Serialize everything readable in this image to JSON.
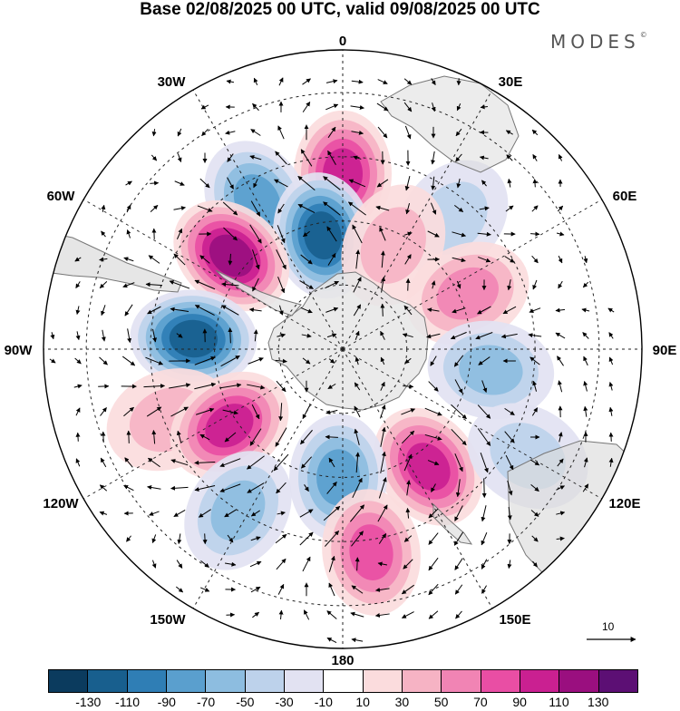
{
  "title": "Base 02/08/2025 00 UTC, valid 09/08/2025 00 UTC",
  "logo": "MODES",
  "logo_mark": "©",
  "longitude_labels": {
    "lon_0": "0",
    "lon_30e": "30E",
    "lon_60e": "60E",
    "lon_90e": "90E",
    "lon_120e": "120E",
    "lon_150e": "150E",
    "lon_180": "180",
    "lon_150w": "150W",
    "lon_120w": "120W",
    "lon_90w": "90W",
    "lon_60w": "60W",
    "lon_30w": "30W"
  },
  "reference_vector": "10",
  "colorbar": {
    "colors": [
      "#0b3b5e",
      "#185f8e",
      "#2f7eb5",
      "#5a9fce",
      "#8dbde0",
      "#bdd2eb",
      "#e2e2f2",
      "#ffffff",
      "#fbdcdd",
      "#f6b3c4",
      "#f184b4",
      "#e94ea4",
      "#ca2091",
      "#9a0f7f",
      "#5c0f74"
    ],
    "labels": [
      "-130",
      "-110",
      "-90",
      "-70",
      "-50",
      "-30",
      "-10",
      "10",
      "30",
      "50",
      "70",
      "90",
      "110",
      "130"
    ]
  },
  "anomaly_centers": [
    {
      "lon": 0,
      "lat": -49,
      "value": 100
    },
    {
      "lon": 40,
      "lat": -50,
      "value": -40
    },
    {
      "lon": 10,
      "lat": -76,
      "value": 5
    },
    {
      "lon": -30,
      "lat": -50,
      "value": -70
    },
    {
      "lon": -10,
      "lat": -63,
      "value": -120
    },
    {
      "lon": 26,
      "lat": -63,
      "value": 40
    },
    {
      "lon": -50,
      "lat": -56,
      "value": 110
    },
    {
      "lon": 66,
      "lat": -58,
      "value": 60
    },
    {
      "lon": -86,
      "lat": -55,
      "value": -110
    },
    {
      "lon": 98,
      "lat": -55,
      "value": -60
    },
    {
      "lon": -112,
      "lat": -46,
      "value": 40
    },
    {
      "lon": -124,
      "lat": -58,
      "value": 100
    },
    {
      "lon": 144,
      "lat": -56,
      "value": 100
    },
    {
      "lon": -178,
      "lat": -60,
      "value": -80
    },
    {
      "lon": -147,
      "lat": -45,
      "value": -50
    },
    {
      "lon": 172,
      "lat": -42,
      "value": 80
    },
    {
      "lon": 120,
      "lat": -40,
      "value": -30
    }
  ]
}
